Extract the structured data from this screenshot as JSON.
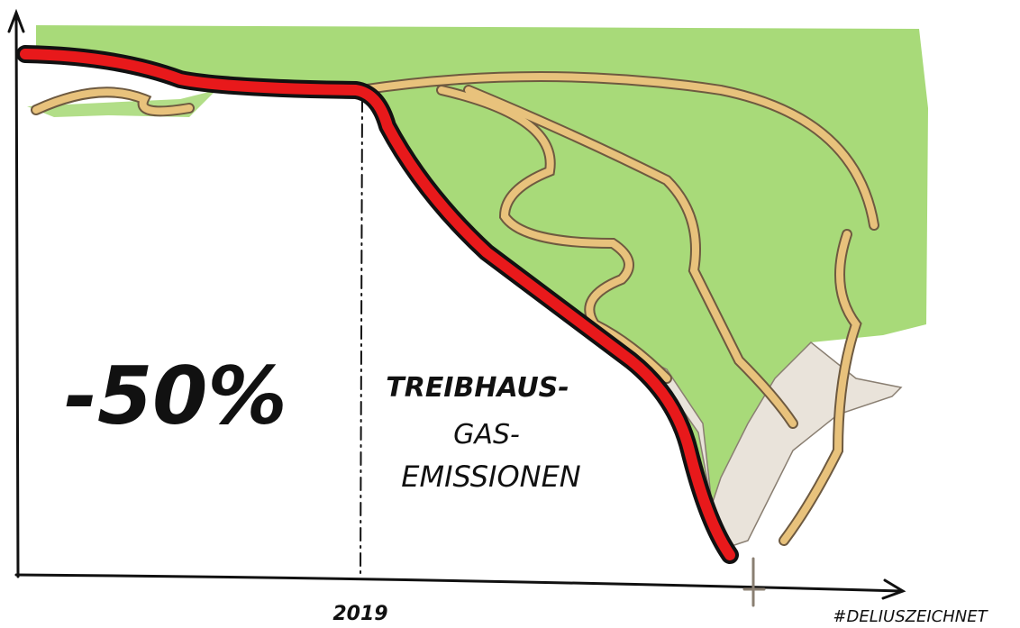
{
  "labels": {
    "big_number": "-50%",
    "annotation": [
      "TREIBHAUS-",
      "GAS-",
      "EMISSIONEN"
    ],
    "year": "2019",
    "signature": "#DELIUSZEICHNET"
  }
}
